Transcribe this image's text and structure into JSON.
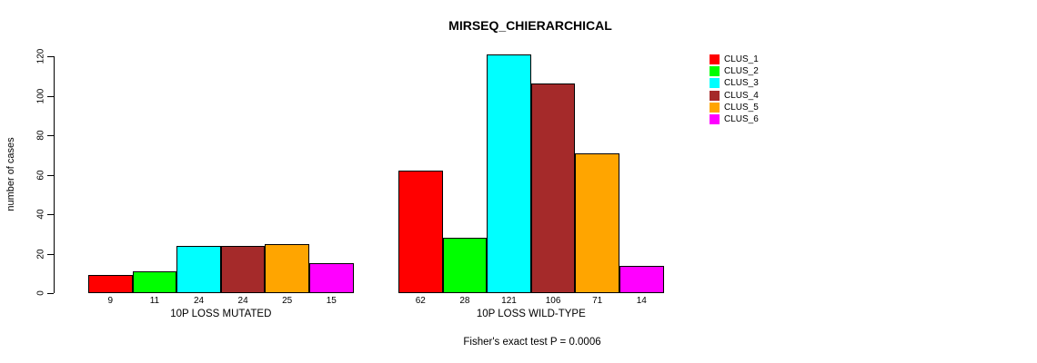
{
  "chart_data": {
    "type": "bar",
    "title": "MIRSEQ_CHIERARCHICAL",
    "ylabel": "number of cases",
    "xlabel": "",
    "ylim": [
      0,
      120
    ],
    "yticks": [
      0,
      20,
      40,
      60,
      80,
      100,
      120
    ],
    "grid": false,
    "bar_borders_color": "#000000",
    "categories": [
      "10P LOSS MUTATED",
      "10P LOSS WILD-TYPE"
    ],
    "series": [
      {
        "name": "CLUS_1",
        "color": "#FF0000",
        "values": [
          9,
          62
        ]
      },
      {
        "name": "CLUS_2",
        "color": "#00FF00",
        "values": [
          11,
          28
        ]
      },
      {
        "name": "CLUS_3",
        "color": "#00FFFF",
        "values": [
          24,
          121
        ]
      },
      {
        "name": "CLUS_4",
        "color": "#A52A2A",
        "values": [
          24,
          106
        ]
      },
      {
        "name": "CLUS_5",
        "color": "#FFA500",
        "values": [
          25,
          71
        ]
      },
      {
        "name": "CLUS_6",
        "color": "#FF00FF",
        "values": [
          15,
          14
        ]
      }
    ],
    "bar_value_labels": [
      [
        "9",
        "11",
        "24",
        "24",
        "25",
        "15"
      ],
      [
        "62",
        "28",
        "121",
        "106",
        "71",
        "14"
      ]
    ],
    "legend_position": "right",
    "footnote": "Fisher's exact test P = 0.0006"
  }
}
